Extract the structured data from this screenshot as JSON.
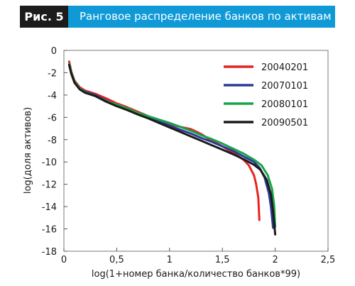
{
  "figure": {
    "label": "Рис. 5",
    "title": "Ранговое распределение банков по активам",
    "header_color": "#0f9ad7",
    "label_bg": "#1c1c1c"
  },
  "chart_data": {
    "type": "line",
    "xlabel": "log(1+номер банка/количество банков*99)",
    "ylabel": "log(доля активов)",
    "xlim": [
      0,
      2.5
    ],
    "ylim": [
      -18,
      0
    ],
    "xticks": [
      0,
      0.5,
      1,
      1.5,
      2,
      2.5
    ],
    "xtick_labels": [
      "0",
      "0,5",
      "1",
      "1,5",
      "2",
      "2,5"
    ],
    "yticks": [
      0,
      -2,
      -4,
      -6,
      -8,
      -10,
      -12,
      -14,
      -16,
      -18
    ],
    "ytick_labels": [
      "0",
      "-2",
      "-4",
      "-6",
      "-8",
      "-10",
      "-12",
      "-14",
      "-16",
      "-18"
    ],
    "grid": false,
    "legend_position": "top-right",
    "series": [
      {
        "name": "20040201",
        "color": "#e52421",
        "points": [
          [
            0.05,
            -1.0
          ],
          [
            0.07,
            -1.9
          ],
          [
            0.1,
            -2.7
          ],
          [
            0.15,
            -3.3
          ],
          [
            0.2,
            -3.6
          ],
          [
            0.3,
            -3.9
          ],
          [
            0.4,
            -4.3
          ],
          [
            0.5,
            -4.75
          ],
          [
            0.6,
            -5.1
          ],
          [
            0.7,
            -5.5
          ],
          [
            0.8,
            -5.9
          ],
          [
            0.9,
            -6.3
          ],
          [
            1.0,
            -6.6
          ],
          [
            1.1,
            -6.85
          ],
          [
            1.2,
            -7.05
          ],
          [
            1.3,
            -7.5
          ],
          [
            1.4,
            -8.1
          ],
          [
            1.5,
            -8.6
          ],
          [
            1.6,
            -9.15
          ],
          [
            1.7,
            -9.8
          ],
          [
            1.75,
            -10.3
          ],
          [
            1.8,
            -11.2
          ],
          [
            1.82,
            -12.0
          ],
          [
            1.84,
            -13.2
          ],
          [
            1.85,
            -15.2
          ]
        ]
      },
      {
        "name": "20070101",
        "color": "#2c3a96",
        "points": [
          [
            0.05,
            -1.3
          ],
          [
            0.07,
            -2.0
          ],
          [
            0.1,
            -2.8
          ],
          [
            0.15,
            -3.4
          ],
          [
            0.2,
            -3.7
          ],
          [
            0.3,
            -4.0
          ],
          [
            0.4,
            -4.5
          ],
          [
            0.5,
            -4.9
          ],
          [
            0.6,
            -5.3
          ],
          [
            0.7,
            -5.7
          ],
          [
            0.8,
            -6.0
          ],
          [
            0.9,
            -6.3
          ],
          [
            1.0,
            -6.75
          ],
          [
            1.1,
            -7.1
          ],
          [
            1.2,
            -7.45
          ],
          [
            1.3,
            -7.85
          ],
          [
            1.4,
            -8.2
          ],
          [
            1.5,
            -8.6
          ],
          [
            1.6,
            -9.0
          ],
          [
            1.7,
            -9.5
          ],
          [
            1.8,
            -10.0
          ],
          [
            1.85,
            -10.5
          ],
          [
            1.9,
            -11.4
          ],
          [
            1.94,
            -12.8
          ],
          [
            1.96,
            -14.0
          ],
          [
            1.98,
            -15.9
          ]
        ]
      },
      {
        "name": "20080101",
        "color": "#1aa24a",
        "points": [
          [
            0.05,
            -1.2
          ],
          [
            0.07,
            -2.0
          ],
          [
            0.1,
            -2.8
          ],
          [
            0.15,
            -3.4
          ],
          [
            0.2,
            -3.75
          ],
          [
            0.3,
            -4.1
          ],
          [
            0.4,
            -4.55
          ],
          [
            0.5,
            -4.85
          ],
          [
            0.6,
            -5.2
          ],
          [
            0.7,
            -5.6
          ],
          [
            0.8,
            -5.9
          ],
          [
            0.9,
            -6.2
          ],
          [
            1.0,
            -6.5
          ],
          [
            1.1,
            -6.85
          ],
          [
            1.2,
            -7.2
          ],
          [
            1.3,
            -7.6
          ],
          [
            1.4,
            -7.95
          ],
          [
            1.5,
            -8.35
          ],
          [
            1.6,
            -8.8
          ],
          [
            1.7,
            -9.25
          ],
          [
            1.8,
            -9.8
          ],
          [
            1.87,
            -10.3
          ],
          [
            1.93,
            -11.2
          ],
          [
            1.97,
            -12.4
          ],
          [
            1.99,
            -13.9
          ],
          [
            2.0,
            -15.8
          ]
        ]
      },
      {
        "name": "20090501",
        "color": "#1a1a1a",
        "points": [
          [
            0.05,
            -1.3
          ],
          [
            0.07,
            -2.1
          ],
          [
            0.1,
            -2.9
          ],
          [
            0.15,
            -3.5
          ],
          [
            0.2,
            -3.8
          ],
          [
            0.3,
            -4.1
          ],
          [
            0.4,
            -4.6
          ],
          [
            0.5,
            -5.0
          ],
          [
            0.6,
            -5.35
          ],
          [
            0.7,
            -5.75
          ],
          [
            0.8,
            -6.1
          ],
          [
            0.9,
            -6.5
          ],
          [
            1.0,
            -6.9
          ],
          [
            1.1,
            -7.3
          ],
          [
            1.2,
            -7.7
          ],
          [
            1.3,
            -8.1
          ],
          [
            1.4,
            -8.5
          ],
          [
            1.5,
            -8.9
          ],
          [
            1.6,
            -9.3
          ],
          [
            1.7,
            -9.75
          ],
          [
            1.8,
            -10.25
          ],
          [
            1.86,
            -10.7
          ],
          [
            1.92,
            -11.6
          ],
          [
            1.96,
            -12.9
          ],
          [
            1.98,
            -14.4
          ],
          [
            2.0,
            -16.5
          ]
        ]
      }
    ]
  }
}
